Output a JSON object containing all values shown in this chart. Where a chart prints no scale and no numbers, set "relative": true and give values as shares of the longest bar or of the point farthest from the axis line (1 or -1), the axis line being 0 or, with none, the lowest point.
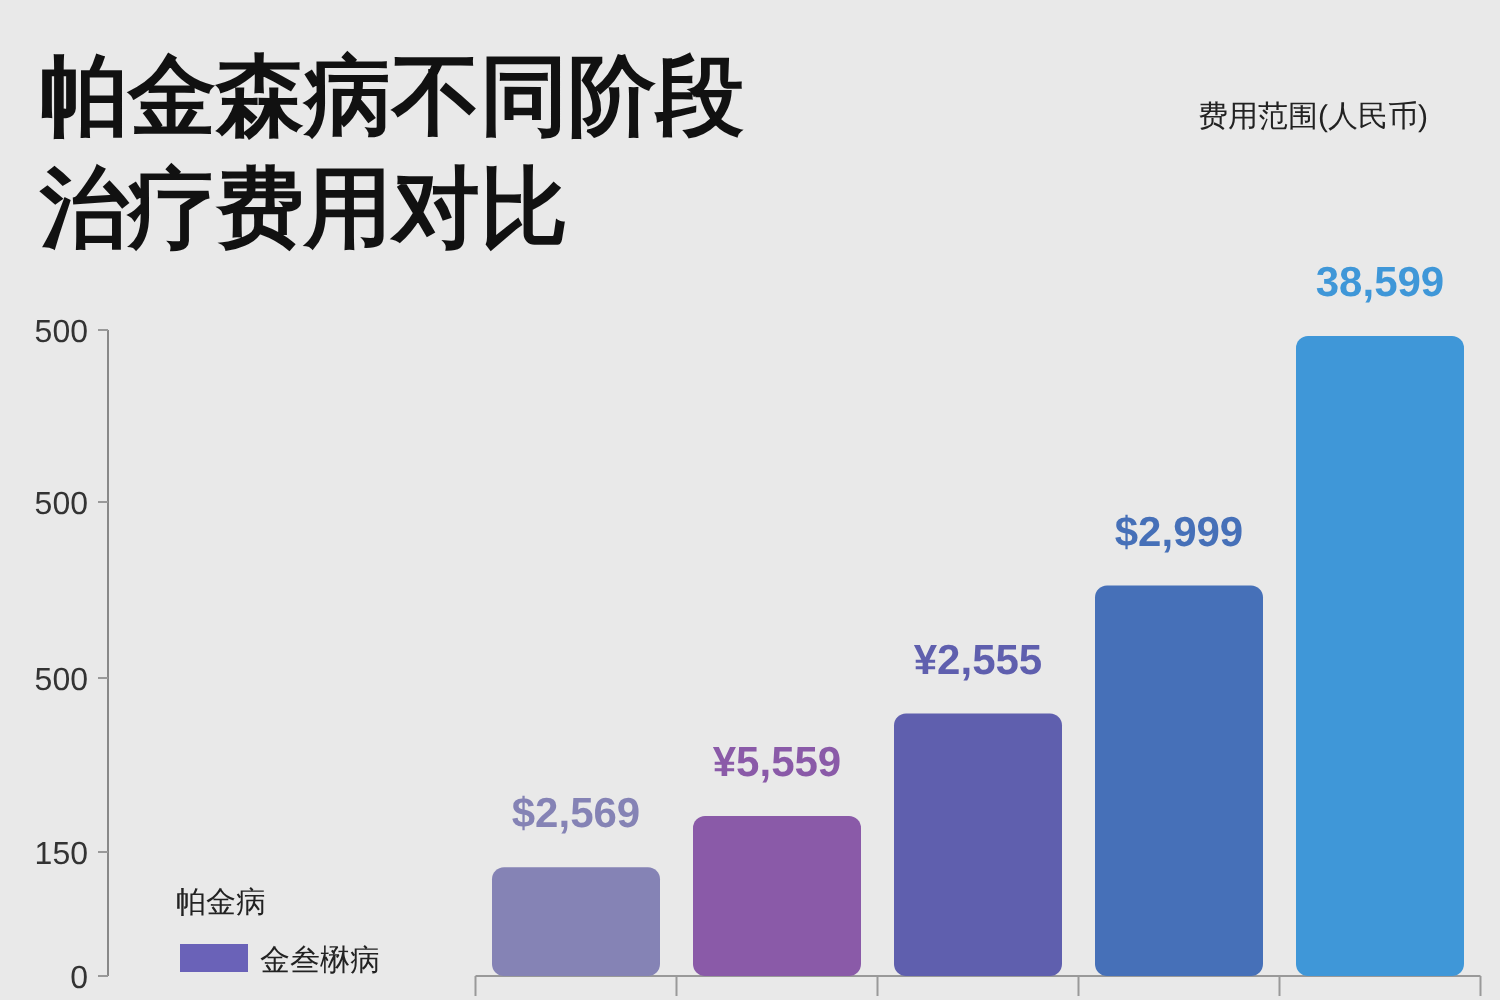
{
  "chart_data": {
    "type": "bar",
    "title": "帕金森病不同阶段治疗费用对比",
    "categories": [
      null,
      null,
      null,
      null,
      null
    ],
    "series": [
      {
        "name": "金叁楙病",
        "color": "#6a62b8",
        "colors": [
          "#8583b5",
          "#8a5aa8",
          "#5f5fae",
          "#4670b8",
          "#3f97d8"
        ],
        "values": [
          0.17,
          0.25,
          0.41,
          0.61,
          1.0
        ]
      }
    ],
    "relative": true,
    "annotations": [
      "$2,569",
      "¥5,559",
      "¥2,555",
      "$2,999",
      "38,599",
      "500",
      "500",
      "500",
      "150",
      "0",
      "费用范围(人民币)"
    ],
    "legend_title": "帕金病",
    "legend": "bottom left"
  }
}
